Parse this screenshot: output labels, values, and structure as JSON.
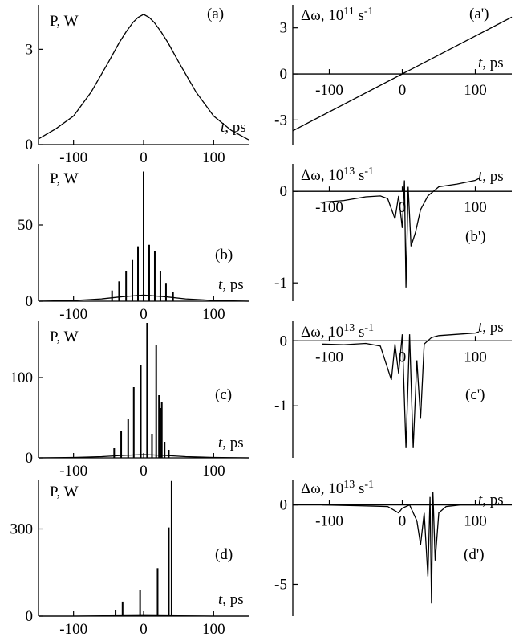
{
  "chart_data": [
    {
      "id": "a",
      "type": "line",
      "panel_label": "(a)",
      "ylabel": "P, W",
      "xlabel": "t, ps",
      "xlim": [
        -150,
        150
      ],
      "ylim": [
        0,
        4.4
      ],
      "xticks": [
        -100,
        0,
        100
      ],
      "xtick_labels": [
        "-100",
        "0",
        "100"
      ],
      "yticks": [
        0,
        3
      ],
      "ytick_labels": [
        "0",
        "3"
      ],
      "series": [
        {
          "x": [
            -150,
            -125,
            -100,
            -75,
            -50,
            -35,
            -25,
            -15,
            -8,
            0,
            8,
            15,
            25,
            35,
            50,
            75,
            100,
            125,
            150
          ],
          "y": [
            0.18,
            0.5,
            0.9,
            1.65,
            2.6,
            3.2,
            3.55,
            3.85,
            4.0,
            4.1,
            4.0,
            3.85,
            3.55,
            3.2,
            2.6,
            1.65,
            0.9,
            0.45,
            0.15
          ]
        }
      ]
    },
    {
      "id": "a2",
      "type": "line",
      "panel_label": "(a')",
      "ylabel": "Δω, 10",
      "ylabel_exp": "11",
      "ylabel_unit": "s",
      "ylabel_unit_exp": "-1",
      "xlabel": "t, ps",
      "xlim": [
        -150,
        150
      ],
      "ylim": [
        -4.6,
        4.5
      ],
      "xticks": [
        -100,
        0,
        100
      ],
      "xtick_labels": [
        "-100",
        "0",
        "100"
      ],
      "yticks": [
        3,
        0,
        -3
      ],
      "ytick_labels": [
        "3",
        "0",
        "-3"
      ],
      "series": [
        {
          "x": [
            -150,
            150
          ],
          "y": [
            -3.7,
            3.7
          ]
        }
      ]
    },
    {
      "id": "b",
      "type": "spikes",
      "panel_label": "(b)",
      "ylabel": "P, W",
      "xlabel": "t, ps",
      "xlim": [
        -150,
        150
      ],
      "ylim": [
        0,
        90
      ],
      "xticks": [
        -100,
        0,
        100
      ],
      "xtick_labels": [
        "-100",
        "0",
        "100"
      ],
      "yticks": [
        0,
        50
      ],
      "ytick_labels": [
        "0",
        "50"
      ],
      "baseline": {
        "x": [
          -150,
          -100,
          -60,
          -30,
          0,
          30,
          60,
          100,
          150
        ],
        "y": [
          0,
          0.5,
          1.5,
          3,
          4,
          3,
          1.5,
          0.5,
          0
        ]
      },
      "spikes": [
        [
          -45,
          7
        ],
        [
          -35,
          13
        ],
        [
          -25,
          20
        ],
        [
          -16,
          27
        ],
        [
          -8,
          36
        ],
        [
          0,
          85
        ],
        [
          8,
          37
        ],
        [
          16,
          33
        ],
        [
          24,
          20
        ],
        [
          32,
          12
        ],
        [
          42,
          6
        ]
      ]
    },
    {
      "id": "b2",
      "type": "line",
      "panel_label": "(b')",
      "ylabel": "Δω, 10",
      "ylabel_exp": "13",
      "ylabel_unit": "s",
      "ylabel_unit_exp": "-1",
      "xlabel": "t, ps",
      "xlim": [
        -150,
        150
      ],
      "ylim": [
        -1.2,
        0.3
      ],
      "xticks": [
        -100,
        0,
        100
      ],
      "xtick_labels": [
        "-100",
        "0",
        "100"
      ],
      "yticks": [
        0,
        -1
      ],
      "ytick_labels": [
        "0",
        "-1"
      ],
      "series": [
        {
          "x": [
            -112,
            -80,
            -50,
            -30,
            -20,
            -10,
            -5,
            0,
            3,
            5,
            8,
            12,
            18,
            25,
            35,
            50,
            75,
            100,
            105
          ],
          "y": [
            -0.12,
            -0.1,
            -0.06,
            -0.05,
            -0.08,
            -0.3,
            -0.05,
            -0.4,
            0.12,
            -1.05,
            0.05,
            -0.6,
            -0.45,
            -0.2,
            -0.05,
            0.05,
            0.08,
            0.12,
            0.14
          ]
        }
      ]
    },
    {
      "id": "c",
      "type": "spikes",
      "panel_label": "(c)",
      "ylabel": "P, W",
      "xlabel": "t, ps",
      "xlim": [
        -150,
        150
      ],
      "ylim": [
        0,
        170
      ],
      "xticks": [
        -100,
        0,
        100
      ],
      "xtick_labels": [
        "-100",
        "0",
        "100"
      ],
      "yticks": [
        0,
        100
      ],
      "ytick_labels": [
        "0",
        "100"
      ],
      "baseline": {
        "x": [
          -150,
          -100,
          -60,
          -30,
          0,
          30,
          60,
          100,
          150
        ],
        "y": [
          0,
          0.5,
          1.5,
          3,
          4,
          3,
          1.5,
          0.5,
          0
        ]
      },
      "spikes": [
        [
          -42,
          12
        ],
        [
          -32,
          33
        ],
        [
          -22,
          48
        ],
        [
          -14,
          88
        ],
        [
          -4,
          115
        ],
        [
          5,
          168
        ],
        [
          12,
          30
        ],
        [
          18,
          140
        ],
        [
          22,
          78
        ],
        [
          24,
          62
        ],
        [
          26,
          70
        ],
        [
          30,
          20
        ],
        [
          36,
          10
        ]
      ]
    },
    {
      "id": "c2",
      "type": "line",
      "panel_label": "(c')",
      "ylabel": "Δω, 10",
      "ylabel_exp": "13",
      "ylabel_unit": "s",
      "ylabel_unit_exp": "-1",
      "xlabel": "t, ps",
      "xlim": [
        -150,
        150
      ],
      "ylim": [
        -1.8,
        0.3
      ],
      "xticks": [
        -100,
        0,
        100
      ],
      "xtick_labels": [
        "-100",
        "0",
        "100"
      ],
      "yticks": [
        0,
        -1
      ],
      "ytick_labels": [
        "0",
        "-1"
      ],
      "series": [
        {
          "x": [
            -110,
            -80,
            -50,
            -30,
            -15,
            -10,
            -5,
            0,
            5,
            10,
            15,
            20,
            25,
            30,
            40,
            50,
            75,
            100,
            105
          ],
          "y": [
            -0.05,
            -0.06,
            -0.04,
            -0.08,
            -0.6,
            -0.05,
            -0.5,
            0.1,
            -1.65,
            0.1,
            -1.65,
            -0.3,
            -1.2,
            -0.05,
            0.05,
            0.08,
            0.1,
            0.12,
            0.14
          ]
        }
      ]
    },
    {
      "id": "d",
      "type": "spikes",
      "panel_label": "(d)",
      "ylabel": "P, W",
      "xlabel": "t, ps",
      "xlim": [
        -150,
        150
      ],
      "ylim": [
        0,
        470
      ],
      "xticks": [
        -100,
        0,
        100
      ],
      "xtick_labels": [
        "-100",
        "0",
        "100"
      ],
      "yticks": [
        0,
        300
      ],
      "ytick_labels": [
        "0",
        "300"
      ],
      "baseline": {
        "x": [
          -150,
          -100,
          -50,
          0,
          50,
          100,
          150
        ],
        "y": [
          0,
          0,
          1,
          2,
          1,
          0,
          0
        ]
      },
      "spikes": [
        [
          -40,
          20
        ],
        [
          -30,
          50
        ],
        [
          -5,
          90
        ],
        [
          20,
          165
        ],
        [
          36,
          305
        ],
        [
          40,
          465
        ]
      ]
    },
    {
      "id": "d2",
      "type": "line",
      "panel_label": "(d')",
      "ylabel": "Δω, 10",
      "ylabel_exp": "13",
      "ylabel_unit": "s",
      "ylabel_unit_exp": "-1",
      "xlabel": "t, ps",
      "xlim": [
        -150,
        150
      ],
      "ylim": [
        -7,
        1.6
      ],
      "xticks": [
        -100,
        0,
        100
      ],
      "xtick_labels": [
        "-100",
        "0",
        "100"
      ],
      "yticks": [
        0,
        -5
      ],
      "ytick_labels": [
        "0",
        "-5"
      ],
      "series": [
        {
          "x": [
            -110,
            -60,
            -20,
            -5,
            0,
            10,
            20,
            25,
            30,
            35,
            38,
            40,
            42,
            45,
            50,
            60,
            80,
            100,
            110
          ],
          "y": [
            0,
            -0.05,
            -0.1,
            -0.5,
            -0.2,
            0,
            -1,
            -2.5,
            -0.5,
            -4.5,
            0.5,
            -6.2,
            0.8,
            -3.5,
            -0.5,
            -0.1,
            0,
            0,
            0
          ]
        }
      ]
    }
  ]
}
